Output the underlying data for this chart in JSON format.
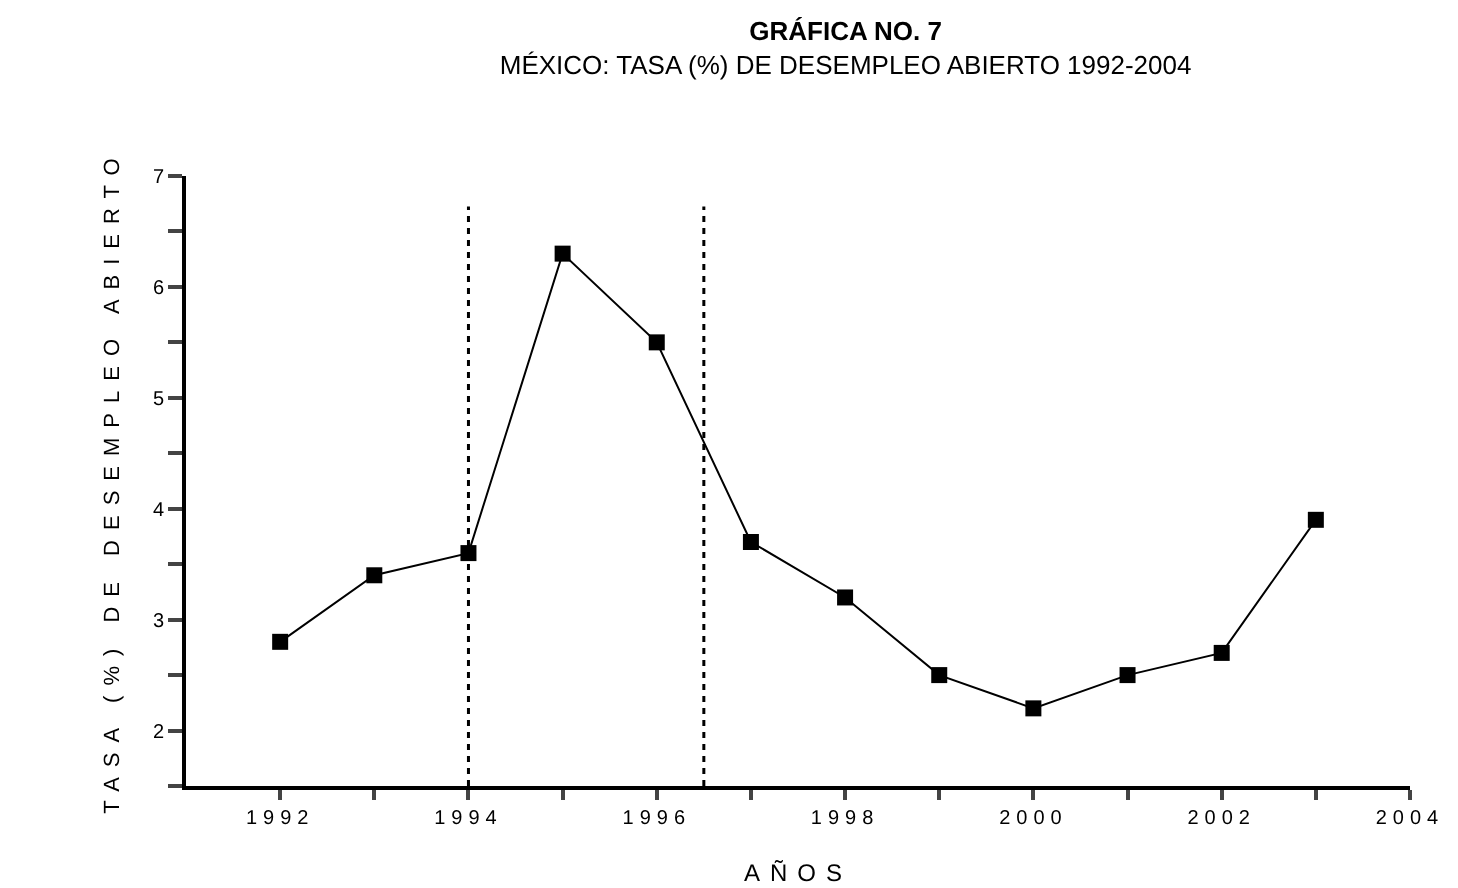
{
  "chart_data": {
    "type": "line",
    "title": "GRÁFICA NO. 7",
    "subtitle": "MÉXICO: TASA (%) DE DESEMPLEO ABIERTO 1992-2004",
    "xlabel": "AÑOS",
    "ylabel": "TASA (%) DE DESEMPLEO ABIERTO",
    "x": [
      1992,
      1993,
      1994,
      1995,
      1996,
      1997,
      1998,
      1999,
      2000,
      2001,
      2002,
      2003
    ],
    "series": [
      {
        "color": "#000000",
        "values": [
          2.8,
          3.4,
          3.6,
          6.3,
          5.5,
          3.7,
          3.2,
          2.5,
          2.2,
          2.5,
          2.7,
          3.9
        ]
      }
    ],
    "xlim": [
      1991,
      2004
    ],
    "xticks": [
      1992,
      {
        "value": 1993,
        "label": null
      },
      1994,
      {
        "value": 1995,
        "label": null
      },
      1996,
      {
        "value": 1997,
        "label": null
      },
      1998,
      {
        "value": 1999,
        "label": null
      },
      2000,
      {
        "value": 2001,
        "label": null
      },
      2002,
      {
        "value": 2003,
        "label": null
      },
      2004
    ],
    "ylim": [
      1.5,
      7
    ],
    "yticks": [
      {
        "value": 1.5,
        "label": null
      },
      2,
      {
        "value": 2.5,
        "label": null
      },
      3,
      {
        "value": 3.5,
        "label": null
      },
      4,
      {
        "value": 4.5,
        "label": null
      },
      5,
      {
        "value": 5.5,
        "label": null
      },
      6,
      {
        "value": 6.5,
        "label": null
      },
      7
    ],
    "ref_lines": [
      {
        "axis": "x",
        "value": 1994,
        "line_style": "dotted",
        "color": "#000000"
      },
      {
        "axis": "x",
        "value": 1996.5,
        "line_style": "dotted",
        "color": "#000000"
      }
    ],
    "marker": "square",
    "line_style": "solid"
  }
}
